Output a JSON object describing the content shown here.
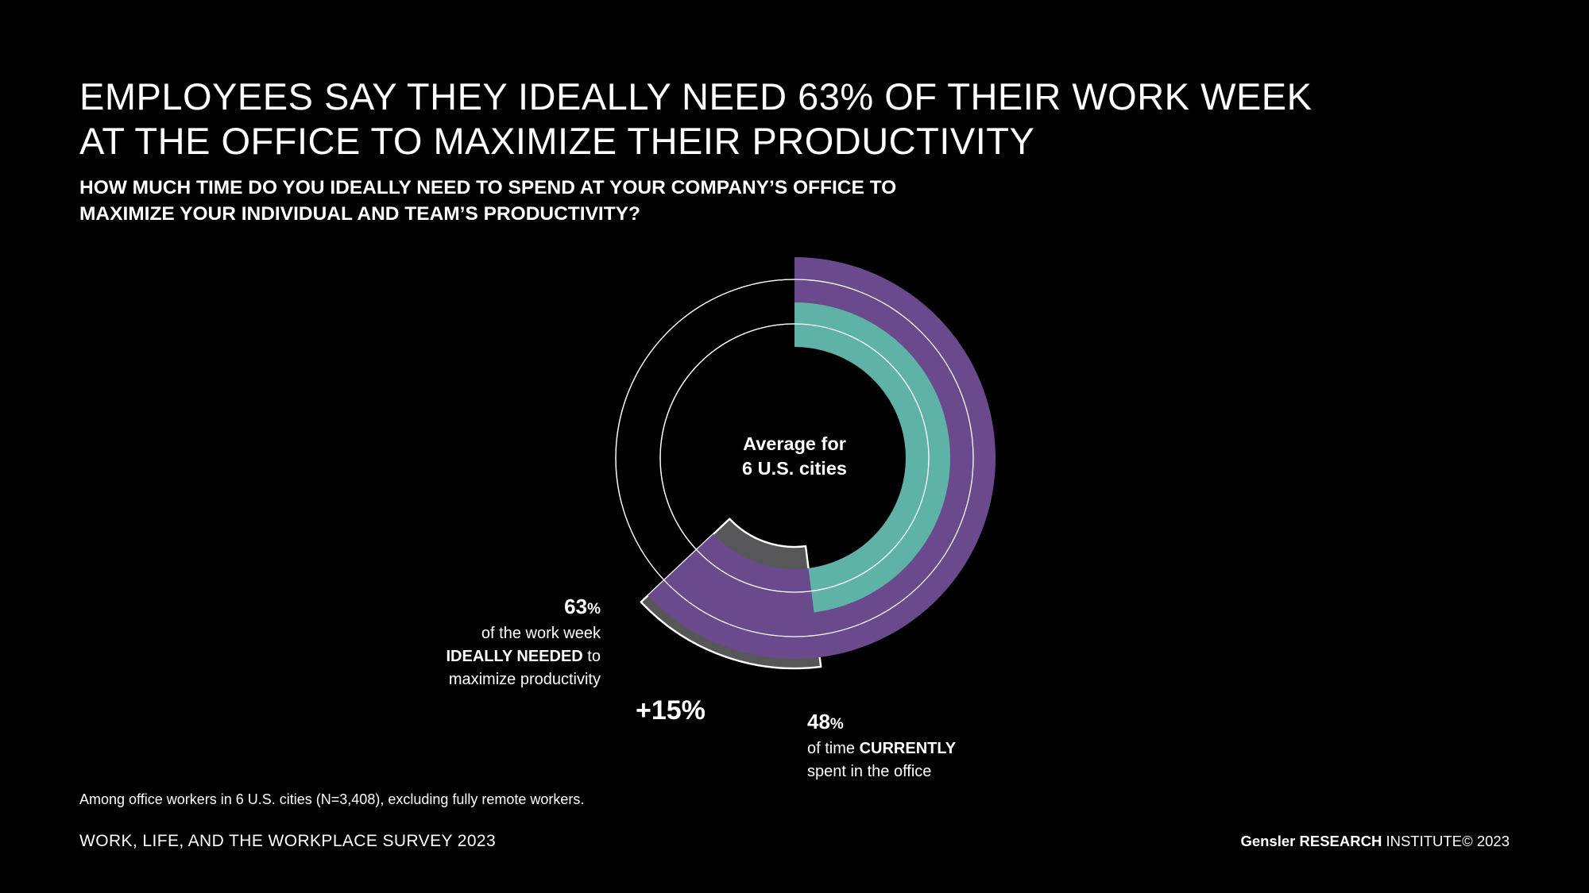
{
  "headline": {
    "line1": "EMPLOYEES SAY THEY IDEALLY NEED 63% OF THEIR WORK WEEK",
    "line2": "AT THE OFFICE TO MAXIMIZE THEIR PRODUCTIVITY"
  },
  "question": {
    "line1": "HOW MUCH TIME DO YOU IDEALLY NEED TO SPEND AT YOUR COMPANY’S OFFICE TO",
    "line2": "MAXIMIZE YOUR INDIVIDUAL AND TEAM’S PRODUCTIVITY?"
  },
  "chart_data": {
    "type": "radial-bar",
    "center_label_line1": "Average for",
    "center_label_line2": "6 U.S. cities",
    "series": [
      {
        "key": "ideal",
        "value": 63,
        "value_text": "63",
        "unit": "%",
        "color": "#6a4a8c",
        "gap_color": "#57575a",
        "text_line1": "of the work week",
        "text_bold": "IDEALLY NEEDED",
        "text_after_bold": " to",
        "text_line3": "maximize productivity"
      },
      {
        "key": "current",
        "value": 48,
        "value_text": "48",
        "unit": "%",
        "color": "#5fb3a6",
        "text_prefix": "of time ",
        "text_bold": "CURRENTLY",
        "text_line2": "spent in the office"
      }
    ],
    "difference_label": "+15%"
  },
  "footnote": "Among office workers in 6 U.S. cities (N=3,408), excluding fully remote workers.",
  "source": "WORK, LIFE, AND THE WORKPLACE SURVEY 2023",
  "credit": {
    "brand": "Gensler",
    "research": "RESEARCH",
    "institute": "INSTITUTE",
    "copyright": "© 2023"
  }
}
